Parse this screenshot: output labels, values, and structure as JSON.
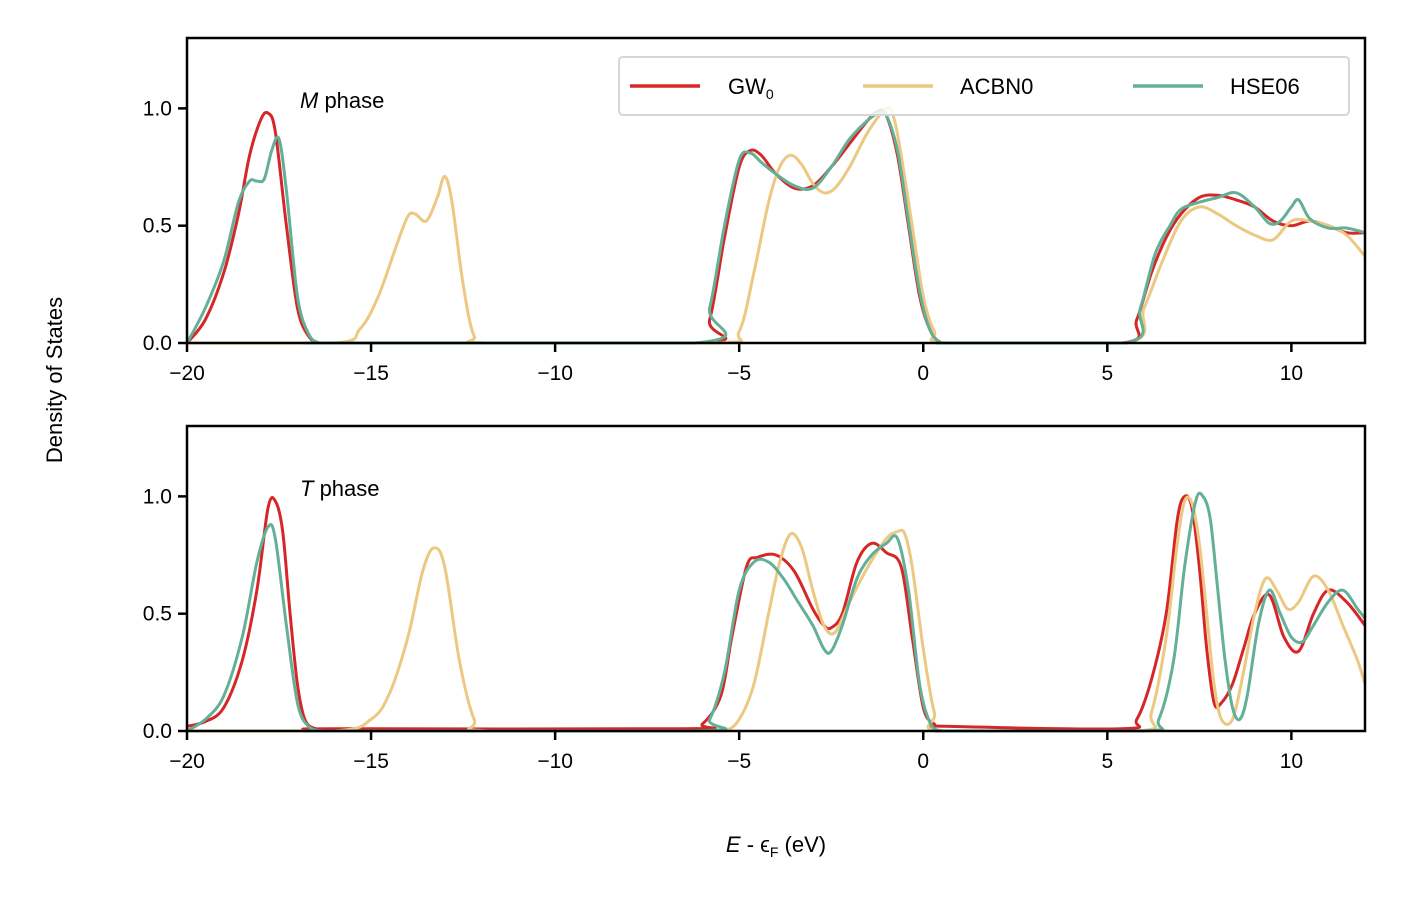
{
  "figure": {
    "ylabel": "Density of States",
    "xlabel": {
      "italic": "E",
      "mid": " - ϵ",
      "sub": "F",
      "tail": " (eV)"
    }
  },
  "legend": {
    "items": [
      {
        "base": "GW",
        "sub": "0",
        "color": "#d62728"
      },
      {
        "base": "ACBN0",
        "sub": "",
        "color": "#ecc882"
      },
      {
        "base": "HSE06",
        "sub": "",
        "color": "#63b096"
      }
    ]
  },
  "chart_data": [
    {
      "type": "line",
      "phase_label": {
        "italic": "M",
        "rest": " phase"
      },
      "xlim": [
        -20,
        12
      ],
      "ylim": [
        0,
        1.3
      ],
      "xticks": [
        -20,
        -15,
        -10,
        -5,
        0,
        5,
        10
      ],
      "xtick_labels": [
        "−20",
        "−15",
        "−10",
        "−5",
        "0",
        "5",
        "10"
      ],
      "yticks": [
        0.0,
        0.5,
        1.0
      ],
      "ytick_labels": [
        "0.0",
        "0.5",
        "1.0"
      ],
      "grid": false,
      "legend": "top-right",
      "series": [
        {
          "name": "GW0",
          "color": "#d62728",
          "x": [
            -20,
            -19.5,
            -19,
            -18.6,
            -18.3,
            -18,
            -17.8,
            -17.6,
            -17.3,
            -17.0,
            -16.7,
            -16.4,
            -16.0,
            -6.2,
            -5.8,
            -5.4,
            -5.0,
            -4.7,
            -4.4,
            -4.0,
            -3.5,
            -3.0,
            -2.5,
            -2.0,
            -1.5,
            -1.2,
            -1.0,
            -0.7,
            -0.4,
            -0.1,
            0.2,
            0.5,
            0.8,
            5.4,
            5.8,
            6.2,
            6.6,
            7.0,
            7.5,
            8.0,
            8.5,
            9.0,
            9.5,
            10.0,
            10.5,
            11.0,
            11.5,
            12.0
          ],
          "y": [
            0.0,
            0.1,
            0.3,
            0.55,
            0.8,
            0.95,
            0.98,
            0.9,
            0.5,
            0.15,
            0.03,
            0.0,
            0.0,
            0.0,
            0.1,
            0.45,
            0.75,
            0.82,
            0.8,
            0.72,
            0.66,
            0.67,
            0.75,
            0.85,
            0.95,
            0.99,
            0.97,
            0.8,
            0.5,
            0.2,
            0.05,
            0.0,
            0.0,
            0.0,
            0.1,
            0.3,
            0.45,
            0.55,
            0.62,
            0.63,
            0.61,
            0.58,
            0.52,
            0.5,
            0.52,
            0.5,
            0.47,
            0.47
          ]
        },
        {
          "name": "ACBN0",
          "color": "#ecc882",
          "x": [
            -20,
            -16.0,
            -15.3,
            -14.8,
            -14.3,
            -14.0,
            -13.8,
            -13.5,
            -13.2,
            -13.0,
            -12.8,
            -12.5,
            -12.2,
            -11.8,
            -5.6,
            -5.0,
            -4.6,
            -4.2,
            -3.9,
            -3.6,
            -3.3,
            -3.0,
            -2.7,
            -2.4,
            -2.0,
            -1.5,
            -1.0,
            -0.8,
            -0.6,
            -0.3,
            0.0,
            0.3,
            0.7,
            5.5,
            6.0,
            6.5,
            7.0,
            7.5,
            8.0,
            8.5,
            9.0,
            9.5,
            10.0,
            10.5,
            11.0,
            11.5,
            12.0
          ],
          "y": [
            0.0,
            0.0,
            0.06,
            0.2,
            0.42,
            0.54,
            0.55,
            0.52,
            0.62,
            0.71,
            0.6,
            0.25,
            0.03,
            0.0,
            0.0,
            0.05,
            0.3,
            0.6,
            0.75,
            0.8,
            0.76,
            0.68,
            0.64,
            0.66,
            0.75,
            0.9,
            1.0,
            0.96,
            0.8,
            0.5,
            0.2,
            0.05,
            0.0,
            0.0,
            0.15,
            0.35,
            0.52,
            0.58,
            0.55,
            0.5,
            0.46,
            0.44,
            0.52,
            0.52,
            0.5,
            0.46,
            0.37
          ]
        },
        {
          "name": "HSE06",
          "color": "#63b096",
          "x": [
            -20,
            -19.5,
            -19,
            -18.6,
            -18.3,
            -18.1,
            -17.9,
            -17.7,
            -17.5,
            -17.3,
            -17.0,
            -16.7,
            -16.4,
            -16.0,
            -6.2,
            -5.8,
            -5.4,
            -5.0,
            -4.7,
            -4.4,
            -4.0,
            -3.5,
            -3.0,
            -2.5,
            -2.0,
            -1.5,
            -1.2,
            -1.0,
            -0.7,
            -0.4,
            -0.1,
            0.2,
            0.5,
            0.8,
            5.5,
            5.9,
            6.3,
            6.7,
            7.0,
            7.5,
            8.0,
            8.5,
            9.0,
            9.4,
            9.7,
            10.0,
            10.2,
            10.5,
            11.0,
            11.5,
            12.0
          ],
          "y": [
            0.0,
            0.15,
            0.35,
            0.6,
            0.69,
            0.69,
            0.7,
            0.82,
            0.87,
            0.65,
            0.2,
            0.04,
            0.0,
            0.0,
            0.0,
            0.15,
            0.5,
            0.78,
            0.81,
            0.77,
            0.72,
            0.67,
            0.66,
            0.75,
            0.87,
            0.95,
            0.98,
            0.97,
            0.82,
            0.52,
            0.22,
            0.05,
            0.0,
            0.0,
            0.0,
            0.15,
            0.38,
            0.5,
            0.57,
            0.6,
            0.62,
            0.64,
            0.58,
            0.51,
            0.52,
            0.58,
            0.61,
            0.53,
            0.49,
            0.49,
            0.47
          ]
        }
      ]
    },
    {
      "type": "line",
      "phase_label": {
        "italic": "T",
        "rest": " phase"
      },
      "xlim": [
        -20,
        12
      ],
      "ylim": [
        0,
        1.3
      ],
      "xticks": [
        -20,
        -15,
        -10,
        -5,
        0,
        5,
        10
      ],
      "xtick_labels": [
        "−20",
        "−15",
        "−10",
        "−5",
        "0",
        "5",
        "10"
      ],
      "yticks": [
        0.0,
        0.5,
        1.0
      ],
      "ytick_labels": [
        "0.0",
        "0.5",
        "1.0"
      ],
      "grid": false,
      "series": [
        {
          "name": "GW0",
          "color": "#d62728",
          "x": [
            -20,
            -19.5,
            -19,
            -18.5,
            -18.1,
            -17.8,
            -17.6,
            -17.4,
            -17.2,
            -17.0,
            -16.8,
            -16.5,
            -16.0,
            -6.5,
            -6.0,
            -5.5,
            -5.2,
            -4.8,
            -4.5,
            -4.0,
            -3.5,
            -3.0,
            -2.7,
            -2.5,
            -2.2,
            -1.8,
            -1.4,
            -1.0,
            -0.6,
            -0.3,
            0.0,
            0.3,
            0.6,
            5.4,
            5.8,
            6.2,
            6.6,
            6.9,
            7.1,
            7.3,
            7.5,
            7.7,
            7.9,
            8.1,
            8.4,
            8.7,
            9.0,
            9.4,
            9.8,
            10.2,
            10.6,
            11.0,
            11.5,
            12.0
          ],
          "y": [
            0.02,
            0.04,
            0.1,
            0.3,
            0.6,
            0.95,
            0.98,
            0.85,
            0.5,
            0.2,
            0.05,
            0.01,
            0.01,
            0.01,
            0.03,
            0.15,
            0.4,
            0.7,
            0.74,
            0.75,
            0.68,
            0.52,
            0.45,
            0.44,
            0.5,
            0.72,
            0.8,
            0.76,
            0.7,
            0.4,
            0.1,
            0.03,
            0.02,
            0.01,
            0.05,
            0.22,
            0.5,
            0.9,
            1.0,
            0.95,
            0.7,
            0.35,
            0.12,
            0.12,
            0.2,
            0.35,
            0.5,
            0.58,
            0.4,
            0.34,
            0.5,
            0.6,
            0.55,
            0.45
          ]
        },
        {
          "name": "ACBN0",
          "color": "#ecc882",
          "x": [
            -20,
            -16.0,
            -15.0,
            -14.5,
            -14.0,
            -13.6,
            -13.3,
            -13.0,
            -12.6,
            -12.2,
            -11.8,
            -6.0,
            -5.4,
            -5.0,
            -4.6,
            -4.2,
            -3.9,
            -3.6,
            -3.3,
            -3.0,
            -2.7,
            -2.4,
            -2.0,
            -1.5,
            -1.0,
            -0.7,
            -0.5,
            -0.3,
            0.0,
            0.3,
            0.6,
            5.8,
            6.2,
            6.6,
            6.9,
            7.1,
            7.3,
            7.5,
            7.7,
            7.9,
            8.1,
            8.4,
            8.7,
            9.0,
            9.3,
            9.6,
            9.9,
            10.2,
            10.6,
            11.0,
            11.4,
            11.8,
            12.0
          ],
          "y": [
            0.0,
            0.0,
            0.05,
            0.16,
            0.4,
            0.68,
            0.78,
            0.7,
            0.3,
            0.05,
            0.0,
            0.0,
            0.0,
            0.05,
            0.2,
            0.5,
            0.72,
            0.84,
            0.78,
            0.6,
            0.45,
            0.42,
            0.55,
            0.7,
            0.82,
            0.85,
            0.84,
            0.7,
            0.35,
            0.08,
            0.0,
            0.0,
            0.08,
            0.4,
            0.8,
            0.98,
            0.97,
            0.8,
            0.5,
            0.2,
            0.05,
            0.05,
            0.25,
            0.5,
            0.65,
            0.6,
            0.52,
            0.55,
            0.66,
            0.6,
            0.45,
            0.3,
            0.2
          ]
        },
        {
          "name": "HSE06",
          "color": "#63b096",
          "x": [
            -20,
            -19.5,
            -19,
            -18.5,
            -18.1,
            -17.8,
            -17.6,
            -17.3,
            -17.0,
            -16.7,
            -16.3,
            -16.0,
            -6.2,
            -5.8,
            -5.4,
            -5.0,
            -4.6,
            -4.2,
            -3.8,
            -3.4,
            -3.0,
            -2.7,
            -2.5,
            -2.2,
            -1.8,
            -1.4,
            -1.0,
            -0.7,
            -0.4,
            -0.1,
            0.2,
            0.5,
            0.8,
            6.0,
            6.4,
            6.8,
            7.1,
            7.4,
            7.6,
            7.8,
            8.0,
            8.2,
            8.4,
            8.6,
            8.8,
            9.1,
            9.4,
            9.7,
            10.0,
            10.3,
            10.6,
            11.0,
            11.4,
            11.8,
            12.0
          ],
          "y": [
            0.0,
            0.05,
            0.15,
            0.4,
            0.72,
            0.87,
            0.82,
            0.45,
            0.12,
            0.02,
            0.0,
            0.0,
            0.0,
            0.05,
            0.25,
            0.6,
            0.72,
            0.72,
            0.65,
            0.55,
            0.45,
            0.35,
            0.34,
            0.45,
            0.65,
            0.75,
            0.8,
            0.82,
            0.6,
            0.2,
            0.03,
            0.0,
            0.0,
            0.0,
            0.05,
            0.3,
            0.7,
            0.98,
            1.0,
            0.9,
            0.6,
            0.3,
            0.1,
            0.05,
            0.15,
            0.45,
            0.6,
            0.5,
            0.4,
            0.38,
            0.45,
            0.55,
            0.6,
            0.52,
            0.48
          ]
        }
      ]
    }
  ]
}
